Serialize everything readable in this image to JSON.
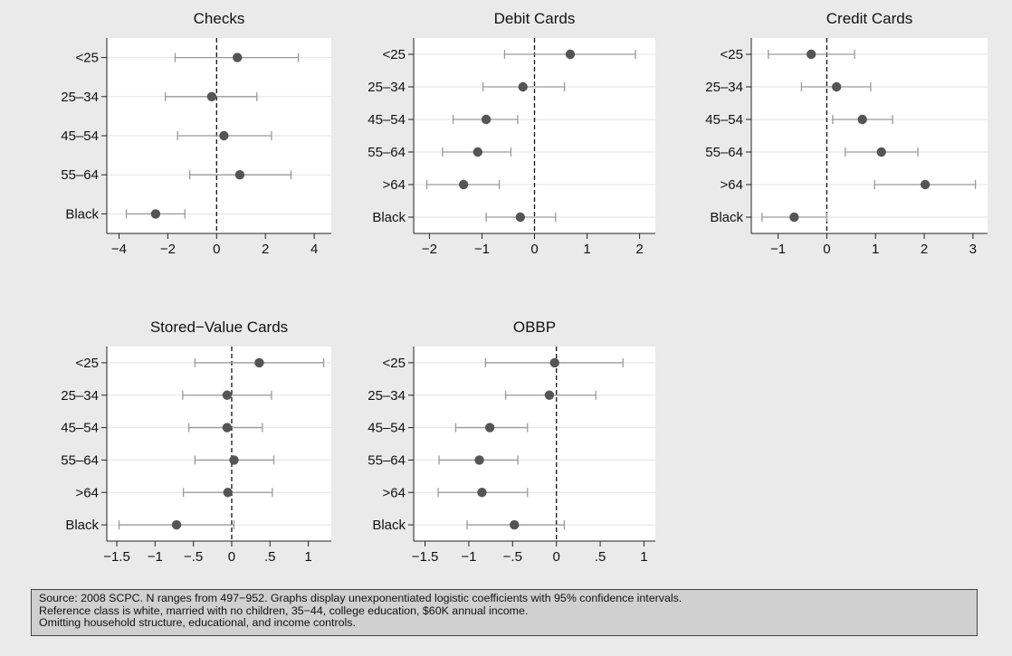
{
  "chart_data": [
    {
      "type": "scatter",
      "subtype": "coefficient-plot-with-95ci",
      "title": "Checks",
      "categories": [
        "<25",
        "25–34",
        "45–54",
        "55–64",
        "Black"
      ],
      "estimates": [
        0.85,
        -0.2,
        0.3,
        0.95,
        -2.5
      ],
      "ci_low": [
        -1.7,
        -2.1,
        -1.6,
        -1.1,
        -3.7
      ],
      "ci_high": [
        3.35,
        1.65,
        2.25,
        3.05,
        -1.3
      ],
      "xlim": [
        -4.5,
        4.7
      ],
      "xticks": [
        -4,
        -2,
        0,
        2,
        4
      ],
      "xtick_labels": [
        "−4",
        "−2",
        "0",
        "2",
        "4"
      ],
      "reference_line": 0,
      "grid": "horizontal"
    },
    {
      "type": "scatter",
      "subtype": "coefficient-plot-with-95ci",
      "title": "Debit Cards",
      "categories": [
        "<25",
        "25–34",
        "45–54",
        "55–64",
        ">64",
        "Black"
      ],
      "estimates": [
        0.68,
        -0.22,
        -0.92,
        -1.08,
        -1.35,
        -0.27
      ],
      "ci_low": [
        -0.57,
        -0.98,
        -1.55,
        -1.75,
        -2.05,
        -0.92
      ],
      "ci_high": [
        1.92,
        0.57,
        -0.32,
        -0.45,
        -0.67,
        0.4
      ],
      "xlim": [
        -2.3,
        2.3
      ],
      "xticks": [
        -2,
        -1,
        0,
        1,
        2
      ],
      "xtick_labels": [
        "−2",
        "−1",
        "0",
        "1",
        "2"
      ],
      "reference_line": 0,
      "grid": "horizontal"
    },
    {
      "type": "scatter",
      "subtype": "coefficient-plot-with-95ci",
      "title": "Credit Cards",
      "categories": [
        "<25",
        "25–34",
        "45–54",
        "55–64",
        ">64",
        "Black"
      ],
      "estimates": [
        -0.32,
        0.2,
        0.73,
        1.12,
        2.02,
        -0.67
      ],
      "ci_low": [
        -1.2,
        -0.52,
        0.12,
        0.38,
        0.98,
        -1.33
      ],
      "ci_high": [
        0.57,
        0.9,
        1.35,
        1.87,
        3.05,
        0.0
      ],
      "xlim": [
        -1.55,
        3.3
      ],
      "xticks": [
        -1,
        0,
        1,
        2,
        3
      ],
      "xtick_labels": [
        "−1",
        "0",
        "1",
        "2",
        "3"
      ],
      "reference_line": 0,
      "grid": "horizontal"
    },
    {
      "type": "scatter",
      "subtype": "coefficient-plot-with-95ci",
      "title": "Stored−Value Cards",
      "categories": [
        "<25",
        "25–34",
        "45–54",
        "55–64",
        ">64",
        "Black"
      ],
      "estimates": [
        0.36,
        -0.06,
        -0.06,
        0.03,
        -0.05,
        -0.72
      ],
      "ci_low": [
        -0.48,
        -0.64,
        -0.56,
        -0.48,
        -0.63,
        -1.47
      ],
      "ci_high": [
        1.2,
        0.52,
        0.4,
        0.55,
        0.53,
        0.03
      ],
      "xlim": [
        -1.63,
        1.3
      ],
      "xticks": [
        -1.5,
        -1,
        -0.5,
        0,
        0.5,
        1
      ],
      "xtick_labels": [
        "−1.5",
        "−1",
        "−.5",
        "0",
        ".5",
        "1"
      ],
      "reference_line": 0,
      "grid": "horizontal"
    },
    {
      "type": "scatter",
      "subtype": "coefficient-plot-with-95ci",
      "title": "OBBP",
      "categories": [
        "<25",
        "25–34",
        "45–54",
        "55–64",
        ">64",
        "Black"
      ],
      "estimates": [
        -0.02,
        -0.08,
        -0.76,
        -0.88,
        -0.85,
        -0.48
      ],
      "ci_low": [
        -0.81,
        -0.58,
        -1.15,
        -1.34,
        -1.35,
        -1.02
      ],
      "ci_high": [
        0.76,
        0.45,
        -0.33,
        -0.44,
        -0.33,
        0.09
      ],
      "xlim": [
        -1.63,
        1.13
      ],
      "xticks": [
        -1.5,
        -1,
        -0.5,
        0,
        0.5,
        1
      ],
      "xtick_labels": [
        "−1.5",
        "−1",
        "−.5",
        "0",
        ".5",
        "1"
      ],
      "reference_line": 0,
      "grid": "horizontal"
    }
  ],
  "note": {
    "lines": [
      "Source: 2008 SCPC.  N ranges from 497−952. Graphs display unexponentiated logistic coefficients with 95% confidence intervals.",
      "Reference class is white, married with no children, 35−44, college education, $60K annual income.",
      "Omitting household structure, educational, and income controls."
    ]
  },
  "colors": {
    "background": "#eaeaea",
    "plot_area": "#ffffff",
    "marker": "#555555",
    "ci_line": "#9a9a9a",
    "gridline": "#e2e2e2",
    "note_box": "#d0d0d0"
  }
}
